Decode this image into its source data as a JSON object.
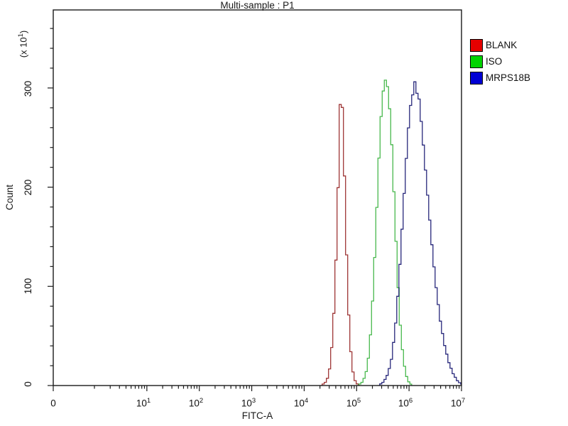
{
  "chart_data": {
    "type": "line",
    "chart_kind": "flow-cytometry-histogram-overlay",
    "title": "Multi-sample : P1",
    "xlabel": "FITC-A",
    "ylabel": "Count",
    "y_unit": {
      "prefix": "(x 10",
      "exp": "1",
      "suffix": ")"
    },
    "x_scale": "log",
    "x_decades": [
      0,
      7
    ],
    "grid": false,
    "legend_position": "right-outside",
    "axis_color": "#1a1a1a",
    "xticks": [
      {
        "base": "0",
        "exp": ""
      },
      {
        "base": "10",
        "exp": "1"
      },
      {
        "base": "10",
        "exp": "2"
      },
      {
        "base": "10",
        "exp": "3"
      },
      {
        "base": "10",
        "exp": "4"
      },
      {
        "base": "10",
        "exp": "5"
      },
      {
        "base": "10",
        "exp": "6"
      },
      {
        "base": "10",
        "exp": "7"
      }
    ],
    "yticks": [
      "0",
      "100",
      "200",
      "300"
    ],
    "y_major_step": 100,
    "y_minor_step": 20,
    "ylim": [
      0,
      378
    ],
    "series": [
      {
        "name": "BLANK",
        "legend_color": "#e60000",
        "curve_color": "#9e3434",
        "peak_x": 47000,
        "peak_count": 308,
        "points": [
          [
            20000,
            0
          ],
          [
            24000,
            3
          ],
          [
            27500,
            9
          ],
          [
            30200,
            22
          ],
          [
            33000,
            48
          ],
          [
            35500,
            78
          ],
          [
            38000,
            118
          ],
          [
            40000,
            152
          ],
          [
            41700,
            188
          ],
          [
            43700,
            228
          ],
          [
            45700,
            262
          ],
          [
            46800,
            295
          ],
          [
            47900,
            308
          ],
          [
            50100,
            292
          ],
          [
            52500,
            260
          ],
          [
            55000,
            226
          ],
          [
            57500,
            188
          ],
          [
            60300,
            148
          ],
          [
            63000,
            110
          ],
          [
            67600,
            70
          ],
          [
            72400,
            40
          ],
          [
            79400,
            16
          ],
          [
            89100,
            5
          ],
          [
            100000,
            1
          ],
          [
            112000,
            0
          ]
        ]
      },
      {
        "name": "ISO",
        "legend_color": "#00d400",
        "curve_color": "#49b84e",
        "peak_x": 350000,
        "peak_count": 310,
        "points": [
          [
            100000,
            0
          ],
          [
            120000,
            3
          ],
          [
            141000,
            10
          ],
          [
            158000,
            25
          ],
          [
            178000,
            55
          ],
          [
            200000,
            100
          ],
          [
            219000,
            148
          ],
          [
            240000,
            198
          ],
          [
            263000,
            246
          ],
          [
            288000,
            283
          ],
          [
            316000,
            303
          ],
          [
            347000,
            310
          ],
          [
            380000,
            298
          ],
          [
            417000,
            272
          ],
          [
            457000,
            233
          ],
          [
            501000,
            184
          ],
          [
            550000,
            134
          ],
          [
            603000,
            89
          ],
          [
            661000,
            54
          ],
          [
            741000,
            27
          ],
          [
            832000,
            11
          ],
          [
            955000,
            3
          ],
          [
            1120000,
            0
          ]
        ]
      },
      {
        "name": "MRPS18B",
        "legend_color": "#0000d4",
        "curve_color": "#26267a",
        "peak_x": 1300000,
        "peak_count": 312,
        "points": [
          [
            251000,
            0
          ],
          [
            316000,
            4
          ],
          [
            380000,
            12
          ],
          [
            447000,
            28
          ],
          [
            525000,
            60
          ],
          [
            603000,
            100
          ],
          [
            692000,
            152
          ],
          [
            794000,
            205
          ],
          [
            891000,
            248
          ],
          [
            1000000,
            280
          ],
          [
            1120000,
            293
          ],
          [
            1200000,
            300
          ],
          [
            1260000,
            312
          ],
          [
            1320000,
            290
          ],
          [
            1410000,
            303
          ],
          [
            1510000,
            284
          ],
          [
            1660000,
            262
          ],
          [
            1820000,
            238
          ],
          [
            2040000,
            207
          ],
          [
            2340000,
            170
          ],
          [
            2690000,
            133
          ],
          [
            3160000,
            97
          ],
          [
            3800000,
            64
          ],
          [
            4570000,
            40
          ],
          [
            5500000,
            23
          ],
          [
            6610000,
            12
          ],
          [
            7940000,
            5
          ],
          [
            9120000,
            2
          ],
          [
            10000000,
            1
          ]
        ]
      }
    ]
  }
}
